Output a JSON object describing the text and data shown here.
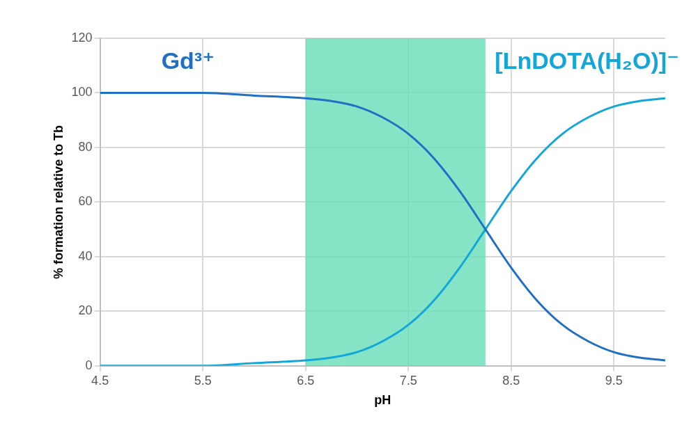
{
  "chart_data": {
    "type": "line",
    "xlabel": "pH",
    "ylabel": "% formation relative to Tb",
    "x": [
      4.5,
      5,
      5.5,
      6,
      6.5,
      6.75,
      7,
      7.25,
      7.5,
      7.75,
      8,
      8.25,
      8.5,
      8.75,
      9,
      9.25,
      9.5,
      9.75,
      10
    ],
    "series": [
      {
        "name": "Gd³⁺",
        "color": "#1f6fc5",
        "values": [
          100,
          100,
          100,
          99,
          98,
          97,
          95,
          91,
          85,
          76,
          64,
          50,
          36,
          24,
          15,
          9,
          5,
          3,
          2
        ]
      },
      {
        "name": "[LnDOTA(H₂O)]⁻",
        "color": "#12a6d9",
        "values": [
          0,
          0,
          0,
          1,
          2,
          3,
          5,
          9,
          15,
          24,
          36,
          50,
          64,
          76,
          85,
          91,
          95,
          97,
          98
        ]
      }
    ],
    "xlim": [
      4.5,
      10
    ],
    "xticks": [
      4.5,
      5.5,
      6.5,
      7.5,
      8.5,
      9.5
    ],
    "ylim": [
      0,
      120
    ],
    "yticks": [
      0,
      20,
      40,
      60,
      80,
      100,
      120
    ],
    "bands": [
      {
        "axis": "x",
        "from": 6.5,
        "to": 8.25,
        "color": "#66ddb8"
      }
    ],
    "grid": true,
    "marker": "none",
    "line_style": "solid",
    "legend": false
  }
}
